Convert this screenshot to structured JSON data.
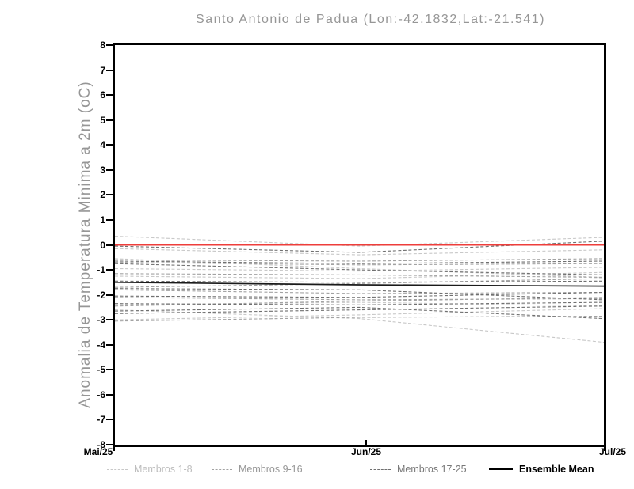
{
  "chart_data": {
    "type": "line",
    "title": "Santo Antonio de Padua (Lon:-42.1832,Lat:-21.541)",
    "ylabel": "Anomalia de Temperatura Minima a 2m (oC)",
    "ylim": [
      -8,
      8
    ],
    "yticks": [
      8,
      7,
      6,
      5,
      4,
      3,
      2,
      1,
      0,
      -1,
      -2,
      -3,
      -4,
      -5,
      -6,
      -7,
      -8
    ],
    "x_categories": [
      "Mai/25",
      "Jun/25",
      "Jul/25"
    ],
    "grid": false,
    "legend_position": "bottom",
    "member_groups": [
      {
        "label": "Membros 1-8",
        "color": "#c8c8c8",
        "line_style": "dashed",
        "members": [
          [
            0.35,
            -0.05,
            0.3
          ],
          [
            -0.15,
            -0.4,
            -0.2
          ],
          [
            -0.95,
            -1.05,
            -0.9
          ],
          [
            -1.25,
            -1.35,
            -1.1
          ],
          [
            -2.4,
            -2.3,
            -2.45
          ],
          [
            -2.6,
            -2.95,
            -3.9
          ],
          [
            -3.0,
            -2.8,
            -2.55
          ],
          [
            -0.55,
            -0.95,
            -1.3
          ]
        ]
      },
      {
        "label": "Membros 9-16",
        "color": "#a2a2a2",
        "line_style": "dashed",
        "members": [
          [
            -0.6,
            -0.65,
            -0.55
          ],
          [
            -0.7,
            -0.8,
            -0.75
          ],
          [
            -1.15,
            -1.2,
            -1.3
          ],
          [
            -1.7,
            -1.55,
            -1.35
          ],
          [
            -1.8,
            -1.95,
            -1.9
          ],
          [
            -2.1,
            -2.2,
            -2.15
          ],
          [
            -2.45,
            -2.25,
            -2.1
          ],
          [
            -3.05,
            -2.9,
            -2.85
          ]
        ]
      },
      {
        "label": "Membros 17-25",
        "color": "#6f6f6f",
        "line_style": "dashed",
        "members": [
          [
            -0.05,
            -0.3,
            0.15
          ],
          [
            -0.65,
            -0.75,
            -0.65
          ],
          [
            -0.75,
            -1.0,
            -1.2
          ],
          [
            -1.45,
            -1.5,
            -1.45
          ],
          [
            -1.75,
            -1.8,
            -2.2
          ],
          [
            -2.05,
            -2.1,
            -1.9
          ],
          [
            -2.35,
            -2.4,
            -2.3
          ],
          [
            -2.65,
            -2.5,
            -2.95
          ],
          [
            -2.75,
            -2.6,
            -2.45
          ]
        ]
      }
    ],
    "ensemble_mean": {
      "label": "Ensemble Mean",
      "color": "#1a1a1a",
      "line_style": "solid",
      "values": [
        -1.5,
        -1.6,
        -1.65
      ]
    },
    "zero_reference_line": {
      "color": "#ee3e3b",
      "line_style": "solid",
      "values": [
        0,
        0,
        0
      ]
    }
  },
  "legend": [
    {
      "label": "Membros 1-8",
      "line_color": "#c8c8c8",
      "text_color": "#bdbdbd",
      "style": "dashed"
    },
    {
      "label": "Membros 9-16",
      "line_color": "#a2a2a2",
      "text_color": "#979797",
      "style": "dashed"
    },
    {
      "label": "Membros 17-25",
      "line_color": "#6f6f6f",
      "text_color": "#787878",
      "style": "dashed"
    },
    {
      "label": "Ensemble Mean",
      "line_color": "#000000",
      "text_color": "#000000",
      "style": "solid"
    }
  ]
}
